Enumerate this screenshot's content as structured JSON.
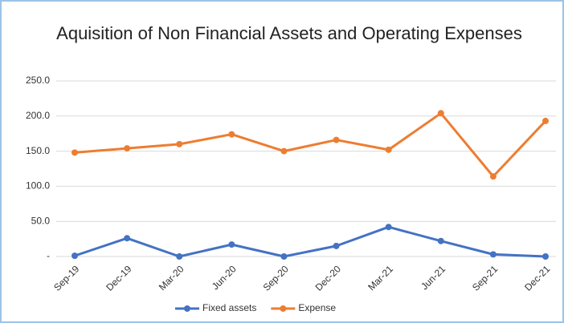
{
  "chart_data": {
    "type": "line",
    "title": "Aquisition of Non Financial Assets and Operating Expenses",
    "categories": [
      "Sep-19",
      "Dec-19",
      "Mar-20",
      "Jun-20",
      "Sep-20",
      "Dec-20",
      "Mar-21",
      "Jun-21",
      "Sep-21",
      "Dec-21"
    ],
    "series": [
      {
        "name": "Fixed assets",
        "color": "#4472c4",
        "values": [
          1,
          26,
          0,
          17,
          0,
          15,
          42,
          22,
          3,
          0
        ]
      },
      {
        "name": "Expense",
        "color": "#ed7d31",
        "values": [
          148,
          154,
          160,
          174,
          150,
          166,
          152,
          204,
          114,
          193
        ]
      }
    ],
    "ylim": [
      0,
      250
    ],
    "yticks": [
      {
        "value": 0,
        "label": "-"
      },
      {
        "value": 50,
        "label": "50.0"
      },
      {
        "value": 100,
        "label": "100.0"
      },
      {
        "value": 150,
        "label": "150.0"
      },
      {
        "value": 200,
        "label": "200.0"
      },
      {
        "value": 250,
        "label": "250.0"
      }
    ],
    "grid": true,
    "legend": "bottom"
  }
}
